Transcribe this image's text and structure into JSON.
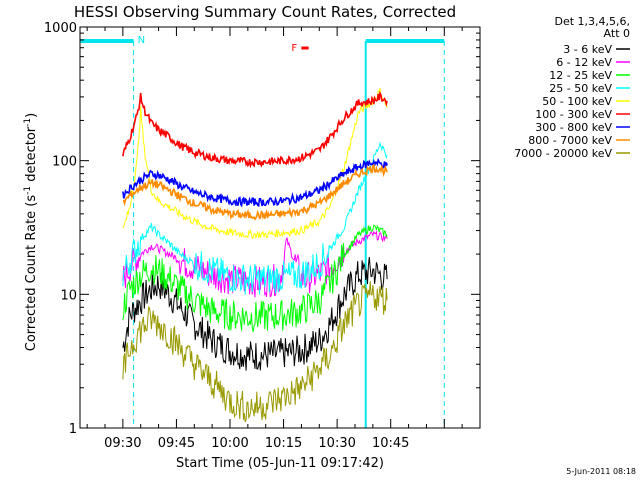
{
  "chart_data": {
    "type": "line",
    "title": "HESSI Observing Summary Count Rates, Corrected",
    "xlabel": "Start Time (05-Jun-11 09:17:42)",
    "ylabel_main": "Corrected Count Rate (s",
    "ylabel_exp1": "-1",
    "ylabel_mid": " detector",
    "ylabel_exp2": "-1",
    "ylabel_end": ")",
    "y_scale": "log",
    "ylim": [
      1,
      1000
    ],
    "xlim_minutes": [
      -12,
      100
    ],
    "x_ticks": [
      {
        "m": 0,
        "label": "09:30"
      },
      {
        "m": 15,
        "label": "09:45"
      },
      {
        "m": 30,
        "label": "10:00"
      },
      {
        "m": 45,
        "label": "10:15"
      },
      {
        "m": 60,
        "label": "10:30"
      },
      {
        "m": 75,
        "label": "10:45"
      }
    ],
    "y_ticks": [
      {
        "v": 1,
        "label": "1"
      },
      {
        "v": 10,
        "label": "10"
      },
      {
        "v": 100,
        "label": "100"
      },
      {
        "v": 1000,
        "label": "1000"
      }
    ],
    "legend_header": [
      "Det 1,3,4,5,6,",
      "Att 0"
    ],
    "legend_placement": "right",
    "annotations": {
      "night_label": "N",
      "flare_label": "F",
      "night_color": "#00e5ee",
      "flare_color": "#ff0000",
      "day_bars": [
        [
          -12,
          3
        ],
        [
          68,
          90
        ]
      ],
      "night_boundaries": [
        3,
        68,
        90
      ],
      "flare_marker": [
        50,
        52
      ]
    },
    "series": [
      {
        "name": "3 - 6 keV",
        "color": "#000000",
        "x": [
          0,
          2,
          5,
          8,
          10,
          13,
          16,
          20,
          25,
          30,
          35,
          40,
          45,
          50,
          55,
          58,
          62,
          66,
          70,
          72,
          74
        ],
        "values": [
          4,
          7,
          9,
          11,
          12,
          10,
          8,
          6,
          4.5,
          3.8,
          3.5,
          3.5,
          3.6,
          3.8,
          4.5,
          6,
          10,
          14,
          15,
          14,
          13
        ]
      },
      {
        "name": "6 - 12 keV",
        "color": "#ff00ff",
        "x": [
          0,
          2,
          5,
          8,
          10,
          13,
          16,
          20,
          25,
          30,
          35,
          40,
          44,
          46,
          48,
          50,
          55,
          58,
          62,
          66,
          70,
          72,
          74
        ],
        "values": [
          13,
          16,
          20,
          23,
          22,
          20,
          18,
          16,
          14,
          13,
          12.5,
          12.5,
          13,
          25,
          18,
          13,
          14,
          16,
          21,
          25,
          28,
          27,
          26
        ]
      },
      {
        "name": "12 - 25 keV",
        "color": "#00ff00",
        "x": [
          0,
          2,
          5,
          8,
          10,
          13,
          16,
          20,
          25,
          30,
          35,
          40,
          45,
          50,
          55,
          58,
          62,
          66,
          70,
          72,
          74
        ],
        "values": [
          8,
          11,
          14,
          16,
          15,
          13,
          11,
          9,
          7.5,
          7,
          6.8,
          6.8,
          7,
          7.5,
          9,
          12,
          20,
          28,
          32,
          30,
          28
        ]
      },
      {
        "name": "25 - 50 keV",
        "color": "#00ffff",
        "x": [
          0,
          2,
          5,
          8,
          10,
          13,
          16,
          20,
          25,
          30,
          35,
          40,
          45,
          50,
          55,
          58,
          62,
          66,
          70,
          72,
          74
        ],
        "values": [
          14,
          18,
          26,
          32,
          28,
          24,
          20,
          17,
          15,
          13.5,
          13,
          13,
          13.5,
          14,
          17,
          22,
          32,
          60,
          100,
          135,
          110
        ]
      },
      {
        "name": "50 - 100 keV",
        "color": "#ffff00",
        "x": [
          0,
          2,
          4,
          5,
          6,
          8,
          10,
          13,
          16,
          20,
          25,
          30,
          35,
          40,
          45,
          50,
          55,
          58,
          62,
          66,
          70,
          72,
          74
        ],
        "values": [
          30,
          45,
          100,
          240,
          120,
          60,
          50,
          45,
          40,
          35,
          31,
          29,
          28,
          28,
          29,
          30,
          35,
          45,
          90,
          230,
          280,
          330,
          250
        ]
      },
      {
        "name": "100 - 300 keV",
        "color": "#ff0000",
        "x": [
          0,
          2,
          4,
          5,
          6,
          8,
          10,
          13,
          16,
          20,
          25,
          30,
          35,
          40,
          45,
          50,
          55,
          58,
          62,
          66,
          70,
          72,
          74
        ],
        "values": [
          110,
          150,
          220,
          300,
          240,
          190,
          170,
          150,
          130,
          115,
          105,
          100,
          98,
          98,
          100,
          105,
          120,
          150,
          210,
          270,
          280,
          300,
          280
        ]
      },
      {
        "name": "300 - 800 keV",
        "color": "#0000ff",
        "x": [
          0,
          2,
          5,
          8,
          10,
          13,
          16,
          20,
          25,
          30,
          35,
          40,
          45,
          50,
          55,
          58,
          62,
          66,
          70,
          72,
          74
        ],
        "values": [
          55,
          62,
          72,
          80,
          78,
          72,
          65,
          58,
          53,
          50,
          49,
          49,
          50,
          53,
          60,
          68,
          80,
          90,
          97,
          95,
          92
        ]
      },
      {
        "name": "800 - 7000 keV",
        "color": "#ff8c00",
        "x": [
          0,
          2,
          5,
          8,
          10,
          13,
          16,
          20,
          25,
          30,
          35,
          40,
          45,
          50,
          55,
          58,
          62,
          66,
          70,
          72,
          74
        ],
        "values": [
          48,
          55,
          63,
          68,
          66,
          60,
          54,
          48,
          43,
          40,
          39,
          39,
          40,
          42,
          48,
          55,
          68,
          80,
          88,
          87,
          82
        ]
      },
      {
        "name": "7000 - 20000 keV",
        "color": "#999900",
        "x": [
          0,
          2,
          5,
          8,
          10,
          13,
          16,
          20,
          25,
          30,
          35,
          40,
          45,
          50,
          55,
          58,
          62,
          66,
          70,
          72,
          74
        ],
        "values": [
          2.5,
          4,
          5.5,
          6.5,
          6,
          5,
          4,
          3,
          2.2,
          1.6,
          1.4,
          1.5,
          1.7,
          2,
          2.8,
          3.5,
          6,
          8.5,
          10,
          9.5,
          9
        ]
      }
    ]
  },
  "footer": {
    "timestamp": "5-Jun-2011 08:18"
  }
}
